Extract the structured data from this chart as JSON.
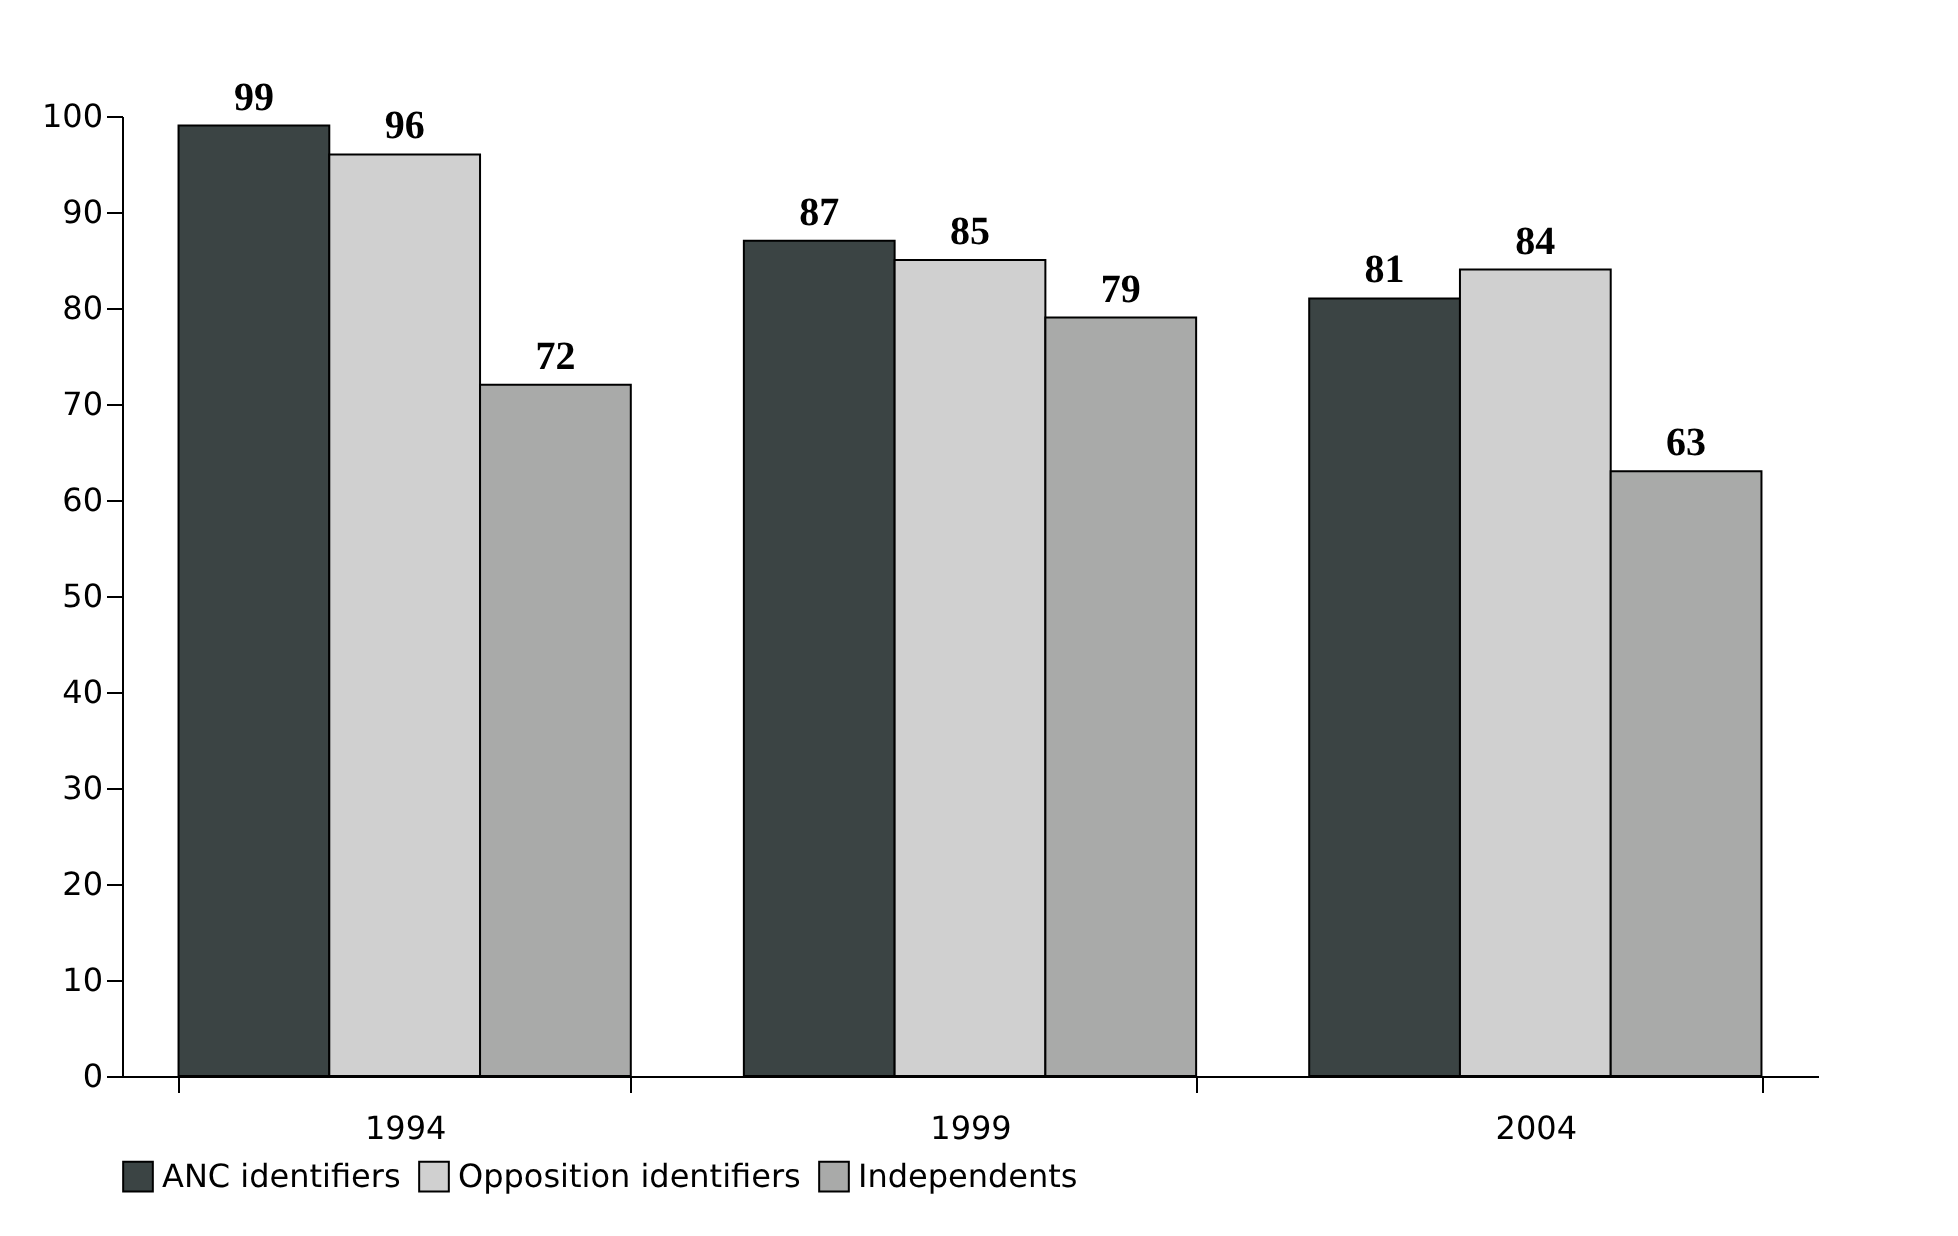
{
  "chart_data": {
    "type": "bar",
    "categories": [
      "1994",
      "1999",
      "2004"
    ],
    "series": [
      {
        "name": "ANC identifiers",
        "color": "#3b4444",
        "values": [
          99,
          87,
          81
        ]
      },
      {
        "name": "Opposition identifiers",
        "color": "#d0d0d0",
        "values": [
          96,
          85,
          84
        ]
      },
      {
        "name": "Independents",
        "color": "#a9aaa9",
        "values": [
          72,
          79,
          63
        ]
      }
    ],
    "ylim": [
      0,
      100
    ],
    "yticks": [
      0,
      10,
      20,
      30,
      40,
      50,
      60,
      70,
      80,
      90,
      100
    ],
    "grid": false,
    "legend": "bottom",
    "data_labels": true
  }
}
